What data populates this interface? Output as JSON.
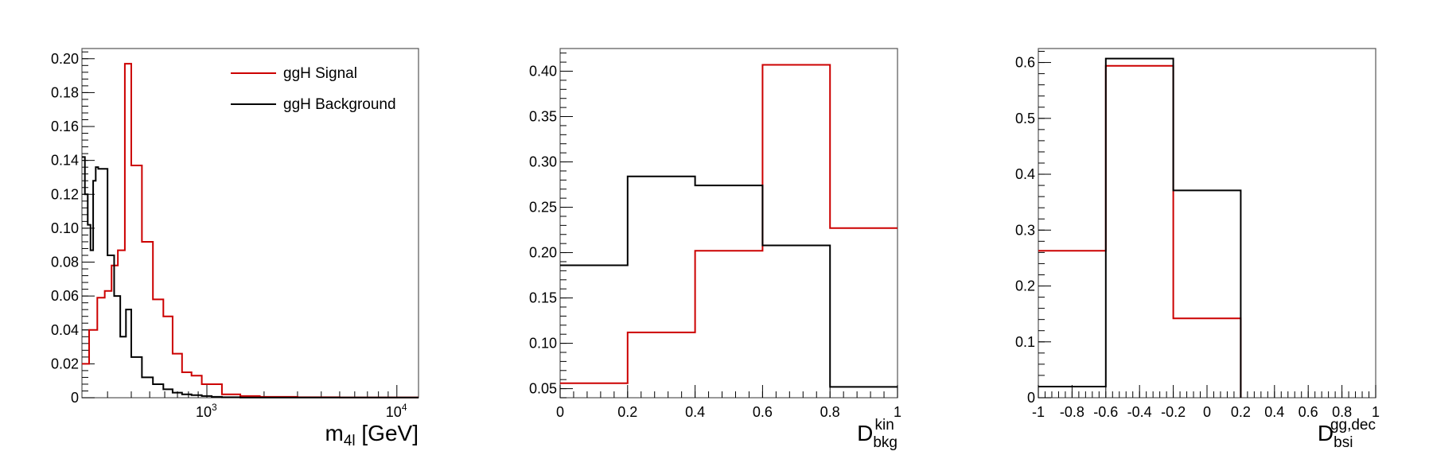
{
  "colors": {
    "signal": "#cc0000",
    "background": "#000000",
    "frame": "#555555"
  },
  "chart_data": [
    {
      "type": "histogram",
      "xscale": "log",
      "xlim": [
        220,
        13000
      ],
      "ylim": [
        0,
        0.206
      ],
      "xlabel": {
        "main": "m",
        "sub": "4l",
        "suffix": " [GeV]"
      },
      "xtick_labels": [
        {
          "value": 1000,
          "base": "10",
          "exp": "3"
        },
        {
          "value": 10000,
          "base": "10",
          "exp": "4"
        }
      ],
      "yticks": [
        0,
        0.02,
        0.04,
        0.06,
        0.08,
        0.1,
        0.12,
        0.14,
        0.16,
        0.18,
        0.2
      ],
      "ytick_labels": [
        "0",
        "0.02",
        "0.04",
        "0.06",
        "0.08",
        "0.10",
        "0.12",
        "0.14",
        "0.16",
        "0.18",
        "0.20"
      ],
      "legend": {
        "position": "top-right",
        "entries": [
          {
            "label": "ggH Signal",
            "series": 0
          },
          {
            "label": "ggH Background",
            "series": 1
          }
        ]
      },
      "series": [
        {
          "name": "ggH Signal",
          "color": "#cc0000",
          "edges": [
            220,
            240,
            265,
            290,
            315,
            340,
            370,
            400,
            455,
            520,
            590,
            660,
            740,
            830,
            940,
            1060,
            1200,
            1500,
            1900,
            3000,
            5000,
            13000
          ],
          "values": [
            0.02,
            0.04,
            0.059,
            0.063,
            0.078,
            0.087,
            0.197,
            0.137,
            0.092,
            0.058,
            0.048,
            0.026,
            0.015,
            0.013,
            0.008,
            0.008,
            0.002,
            0.001,
            0.0005,
            0.0003,
            0.0002
          ]
        },
        {
          "name": "ggH Background",
          "color": "#000000",
          "edges": [
            220,
            228,
            236,
            244,
            252,
            260,
            268,
            300,
            325,
            350,
            375,
            400,
            455,
            520,
            590,
            660,
            740,
            830,
            940,
            1060,
            1200,
            1500,
            2000,
            13000
          ],
          "values": [
            0.142,
            0.12,
            0.102,
            0.087,
            0.128,
            0.136,
            0.135,
            0.084,
            0.06,
            0.036,
            0.052,
            0.024,
            0.012,
            0.008,
            0.005,
            0.003,
            0.002,
            0.0015,
            0.001,
            0.0005,
            0.0003,
            0.0001,
            0.0001
          ]
        }
      ]
    },
    {
      "type": "histogram",
      "xscale": "linear",
      "xlim": [
        0,
        1
      ],
      "ylim": [
        0.04,
        0.425
      ],
      "xlabel": {
        "main": "D",
        "sub": "bkg",
        "sup": "kin"
      },
      "xticks": [
        0,
        0.2,
        0.4,
        0.6,
        0.8,
        1
      ],
      "xtick_labels": [
        "0",
        "0.2",
        "0.4",
        "0.6",
        "0.8",
        "1"
      ],
      "yticks": [
        0.05,
        0.1,
        0.15,
        0.2,
        0.25,
        0.3,
        0.35,
        0.4
      ],
      "ytick_labels": [
        "0.05",
        "0.10",
        "0.15",
        "0.20",
        "0.25",
        "0.30",
        "0.35",
        "0.40"
      ],
      "series": [
        {
          "name": "ggH Signal",
          "color": "#cc0000",
          "edges": [
            0,
            0.2,
            0.4,
            0.6,
            0.8,
            1
          ],
          "values": [
            0.056,
            0.112,
            0.202,
            0.407,
            0.227
          ]
        },
        {
          "name": "ggH Background",
          "color": "#000000",
          "edges": [
            0,
            0.2,
            0.4,
            0.6,
            0.8,
            1
          ],
          "values": [
            0.186,
            0.284,
            0.274,
            0.208,
            0.052
          ]
        }
      ]
    },
    {
      "type": "histogram",
      "xscale": "linear",
      "xlim": [
        -1,
        1
      ],
      "ylim": [
        0,
        0.625
      ],
      "xlabel": {
        "main": "D",
        "sub": "bsi",
        "sup": "gg,dec"
      },
      "xticks": [
        -1,
        -0.8,
        -0.6,
        -0.4,
        -0.2,
        0,
        0.2,
        0.4,
        0.6,
        0.8,
        1
      ],
      "xtick_labels": [
        "-1",
        "-0.8",
        "-0.6",
        "-0.4",
        "-0.2",
        "0",
        "0.2",
        "0.4",
        "0.6",
        "0.8",
        "1"
      ],
      "yticks": [
        0,
        0.1,
        0.2,
        0.3,
        0.4,
        0.5,
        0.6
      ],
      "ytick_labels": [
        "0",
        "0.1",
        "0.2",
        "0.3",
        "0.4",
        "0.5",
        "0.6"
      ],
      "series": [
        {
          "name": "ggH Signal",
          "color": "#cc0000",
          "edges": [
            -1,
            -0.6,
            -0.2,
            0.2
          ],
          "values": [
            0.263,
            0.594,
            0.142
          ]
        },
        {
          "name": "ggH Background",
          "color": "#000000",
          "edges": [
            -1,
            -0.6,
            -0.2,
            0.2
          ],
          "values": [
            0.02,
            0.607,
            0.371
          ]
        }
      ]
    }
  ]
}
